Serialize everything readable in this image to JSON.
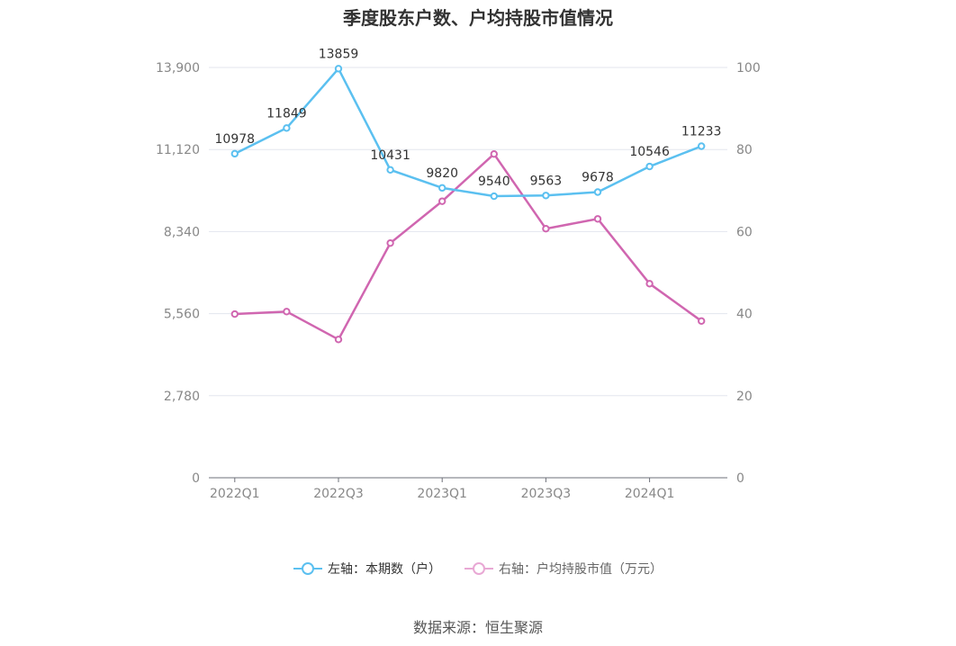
{
  "title": "季度股东户数、户均持股市值情况",
  "legend": {
    "left_label": "左轴：本期数（户）",
    "right_label": "右轴：户均持股市值（万元）"
  },
  "source": "数据来源：恒生聚源",
  "colors": {
    "left_series": "#5bc0f0",
    "right_series": "#d066b0",
    "right_legend": "#e8a8d4"
  },
  "chart_data": {
    "type": "line",
    "x": [
      "2022Q1",
      "2022Q2",
      "2022Q3",
      "2022Q4",
      "2023Q1",
      "2023Q2",
      "2023Q3",
      "2023Q4",
      "2024Q1",
      "2024Q2"
    ],
    "x_tick_labels": [
      "2022Q1",
      "",
      "2022Q3",
      "",
      "2023Q1",
      "",
      "2023Q3",
      "",
      "2024Q1",
      ""
    ],
    "left_axis": {
      "ylim": [
        0,
        13900
      ],
      "ticks": [
        "0",
        "2,780",
        "5,560",
        "8,340",
        "11,120",
        "13,900"
      ]
    },
    "right_axis": {
      "ylim": [
        0,
        100
      ],
      "ticks": [
        "0",
        "20",
        "40",
        "60",
        "80",
        "100"
      ]
    },
    "series": [
      {
        "name": "左轴：本期数（户）",
        "axis": "left",
        "values": [
          10978,
          11849,
          13859,
          10431,
          9820,
          9540,
          9563,
          9678,
          10546,
          11233
        ],
        "labels": [
          "10978",
          "11849",
          "13859",
          "10431",
          "9820",
          "9540",
          "9563",
          "9678",
          "10546",
          "11233"
        ]
      },
      {
        "name": "右轴：户均持股市值（万元）",
        "axis": "right",
        "values": [
          39.9,
          40.5,
          33.7,
          57.2,
          67.4,
          78.9,
          60.7,
          63.1,
          47.3,
          38.2
        ]
      }
    ],
    "grid": true,
    "legend_position": "bottom"
  }
}
